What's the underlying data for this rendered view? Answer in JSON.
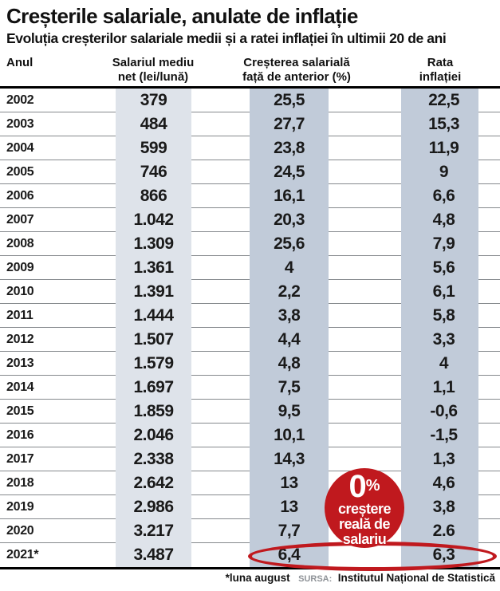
{
  "header": {
    "title": "Creșterile salariale, anulate de inflație",
    "subtitle": "Evoluția creșterilor salariale medii și a ratei inflației în ultimii 20 de ani"
  },
  "table": {
    "headers": [
      "Anul",
      "Salariul mediu\nnet (lei/lună)",
      "Creșterea salarială\nfață de anterior (%)",
      "Rata\ninflației (%)"
    ]
  },
  "chart_data": {
    "type": "table",
    "title": "Creșterile salariale, anulate de inflație",
    "subtitle": "Evoluția creșterilor salariale medii și a ratei inflației în ultimii 20 de ani",
    "columns": [
      "Anul",
      "Salariul mediu net (lei/lună)",
      "Creșterea salarială față de anterior (%)",
      "Rata inflației (%)"
    ],
    "rows": [
      [
        "2002",
        "379",
        "25,5",
        "22,5"
      ],
      [
        "2003",
        "484",
        "27,7",
        "15,3"
      ],
      [
        "2004",
        "599",
        "23,8",
        "11,9"
      ],
      [
        "2005",
        "746",
        "24,5",
        "9"
      ],
      [
        "2006",
        "866",
        "16,1",
        "6,6"
      ],
      [
        "2007",
        "1.042",
        "20,3",
        "4,8"
      ],
      [
        "2008",
        "1.309",
        "25,6",
        "7,9"
      ],
      [
        "2009",
        "1.361",
        "4",
        "5,6"
      ],
      [
        "2010",
        "1.391",
        "2,2",
        "6,1"
      ],
      [
        "2011",
        "1.444",
        "3,8",
        "5,8"
      ],
      [
        "2012",
        "1.507",
        "4,4",
        "3,3"
      ],
      [
        "2013",
        "1.579",
        "4,8",
        "4"
      ],
      [
        "2014",
        "1.697",
        "7,5",
        "1,1"
      ],
      [
        "2015",
        "1.859",
        "9,5",
        "-0,6"
      ],
      [
        "2016",
        "2.046",
        "10,1",
        "-1,5"
      ],
      [
        "2017",
        "2.338",
        "14,3",
        "1,3"
      ],
      [
        "2018",
        "2.642",
        "13",
        "4,6"
      ],
      [
        "2019",
        "2.986",
        "13",
        "3,8"
      ],
      [
        "2020",
        "3.217",
        "7,7",
        "2.6"
      ],
      [
        "2021*",
        "3.487",
        "6,4",
        "6,3"
      ]
    ],
    "years": [
      "2002",
      "2003",
      "2004",
      "2005",
      "2006",
      "2007",
      "2008",
      "2009",
      "2010",
      "2011",
      "2012",
      "2013",
      "2014",
      "2015",
      "2016",
      "2017",
      "2018",
      "2019",
      "2020",
      "2021*"
    ],
    "salary_net_lei": [
      379,
      484,
      599,
      746,
      866,
      1042,
      1309,
      1361,
      1391,
      1444,
      1507,
      1579,
      1697,
      1859,
      2046,
      2338,
      2642,
      2986,
      3217,
      3487
    ],
    "salary_growth_pct": [
      25.5,
      27.7,
      23.8,
      24.5,
      16.1,
      20.3,
      25.6,
      4,
      2.2,
      3.8,
      4.4,
      4.8,
      7.5,
      9.5,
      10.1,
      14.3,
      13,
      13,
      7.7,
      6.4
    ],
    "inflation_pct": [
      22.5,
      15.3,
      11.9,
      9,
      6.6,
      4.8,
      7.9,
      5.6,
      6.1,
      5.8,
      3.3,
      4,
      1.1,
      -0.6,
      -1.5,
      1.3,
      4.6,
      3.8,
      2.6,
      6.3
    ],
    "annotation": "0% creștere reală de salariu",
    "highlight": "2021 values 6,4 and 6,3 circled in red",
    "footnote": "*luna august SURSA: Institutul Național de Statistică"
  },
  "badge": {
    "zero": "0",
    "percent": "%",
    "lines": [
      "creștere",
      "reală de",
      "salariu"
    ]
  },
  "footnote": {
    "note": "*luna august",
    "source_label": "SURSA:",
    "source": "Institutul Național de Statistică"
  },
  "colors": {
    "accent_red": "#c0191e",
    "band_light": "#dee3ea",
    "band_dark": "#c1cbd9"
  }
}
